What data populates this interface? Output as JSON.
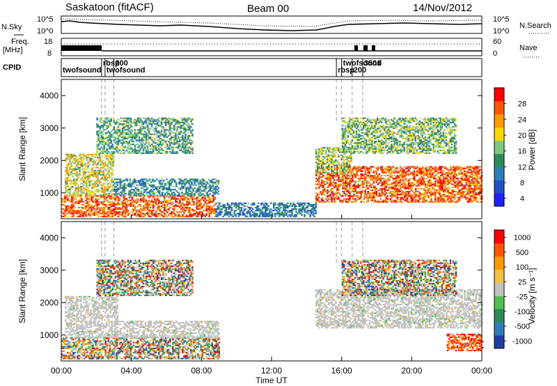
{
  "header": {
    "station": "Saskatoon (fitACF)",
    "beam": "Beam 00",
    "date": "14/Nov/2012"
  },
  "noise_panel": {
    "left_label": "N.Sky",
    "right_label": "N.Search",
    "left_ticks": [
      "10^5",
      "10^0"
    ],
    "right_ticks": [
      "10^5",
      "10^0"
    ]
  },
  "freq_panel": {
    "left_label_1": "Freq.",
    "left_label_2": "[MHz]",
    "right_label": "Nave",
    "left_ticks": [
      "18",
      "8"
    ],
    "right_ticks": [
      "60",
      "0"
    ]
  },
  "cpid_panel": {
    "label": "CPID",
    "labels": [
      {
        "time": 0.0,
        "text": "twofsound"
      },
      {
        "time": 2.3,
        "text": "rbsp"
      },
      {
        "time": 2.5,
        "text": "twofsound"
      },
      {
        "time": 3.0,
        "text": "200"
      },
      {
        "time": 15.7,
        "text": "rbsp"
      },
      {
        "time": 16.0,
        "text": "twofsound"
      },
      {
        "time": 16.6,
        "text": "200"
      },
      {
        "time": 17.2,
        "text": "3501"
      }
    ]
  },
  "colors": {
    "power_scale": [
      "#2020ff",
      "#1e50c8",
      "#2c7fb8",
      "#2e8b57",
      "#7fc97f",
      "#ffd700",
      "#ff9900",
      "#ff5500",
      "#ff0000"
    ],
    "velocity_scale": [
      "#ff0000",
      "#ff5500",
      "#ff9900",
      "#f0c040",
      "#c0c0c0",
      "#50c050",
      "#2e8b57",
      "#2c7fb8",
      "#1e3fa0"
    ],
    "ground_scatter": "#c0c0c0"
  },
  "chart_data": [
    {
      "type": "heatmap",
      "name": "power",
      "xlabel": "",
      "ylabel": "Slant Range [km]",
      "x_range_hours": [
        0,
        24
      ],
      "ylim": [
        200,
        4500
      ],
      "y_ticks": [
        "1000",
        "2000",
        "3000",
        "4000"
      ],
      "x_ticks": [
        "00:00",
        "04:00",
        "08:00",
        "12:00",
        "16:00",
        "20:00",
        "00:00"
      ],
      "colorbar": {
        "label": "Power [dB]",
        "ticks": [
          "28",
          "24",
          "20",
          "16",
          "12",
          "8",
          "4"
        ],
        "range": [
          0,
          30
        ]
      },
      "regions": [
        {
          "t0": 0.0,
          "t1": 8.8,
          "r0": 250,
          "r1": 900,
          "level": 26
        },
        {
          "t0": 0.2,
          "t1": 3.0,
          "r0": 900,
          "r1": 2200,
          "level": 18
        },
        {
          "t0": 3.0,
          "t1": 9.0,
          "r0": 900,
          "r1": 1400,
          "level": 10
        },
        {
          "t0": 2.0,
          "t1": 7.5,
          "r0": 2200,
          "r1": 3300,
          "level": 12
        },
        {
          "t0": 8.8,
          "t1": 14.5,
          "r0": 250,
          "r1": 700,
          "level": 8
        },
        {
          "t0": 14.5,
          "t1": 24.0,
          "r0": 700,
          "r1": 1800,
          "level": 26
        },
        {
          "t0": 14.5,
          "t1": 16.5,
          "r0": 1600,
          "r1": 2400,
          "level": 16
        },
        {
          "t0": 16.0,
          "t1": 22.5,
          "r0": 2200,
          "r1": 3300,
          "level": 14
        }
      ]
    },
    {
      "type": "heatmap",
      "name": "velocity",
      "xlabel": "Time UT",
      "ylabel": "Slant Range [km]",
      "x_range_hours": [
        0,
        24
      ],
      "ylim": [
        200,
        4500
      ],
      "y_ticks": [
        "1000",
        "2000",
        "3000",
        "4000"
      ],
      "x_ticks": [
        "00:00",
        "04:00",
        "08:00",
        "12:00",
        "16:00",
        "20:00",
        "00:00"
      ],
      "colorbar": {
        "label": "Velocity [m s⁻¹]",
        "ticks": [
          "1000",
          "500",
          "100",
          "25",
          "-25",
          "-100",
          "-500",
          "-1000"
        ]
      },
      "regions": [
        {
          "t0": 0.0,
          "t1": 9.0,
          "r0": 250,
          "r1": 900,
          "kind": "mixed"
        },
        {
          "t0": 0.2,
          "t1": 3.2,
          "r0": 900,
          "r1": 2200,
          "kind": "ground"
        },
        {
          "t0": 3.0,
          "t1": 9.0,
          "r0": 900,
          "r1": 1400,
          "kind": "ground"
        },
        {
          "t0": 2.0,
          "t1": 7.5,
          "r0": 2200,
          "r1": 3300,
          "kind": "mixed"
        },
        {
          "t0": 14.5,
          "t1": 24.0,
          "r0": 1200,
          "r1": 2400,
          "kind": "ground"
        },
        {
          "t0": 16.0,
          "t1": 22.5,
          "r0": 2200,
          "r1": 3300,
          "kind": "mixed"
        },
        {
          "t0": 22.0,
          "t1": 24.0,
          "r0": 500,
          "r1": 1000,
          "kind": "negative"
        }
      ]
    }
  ]
}
